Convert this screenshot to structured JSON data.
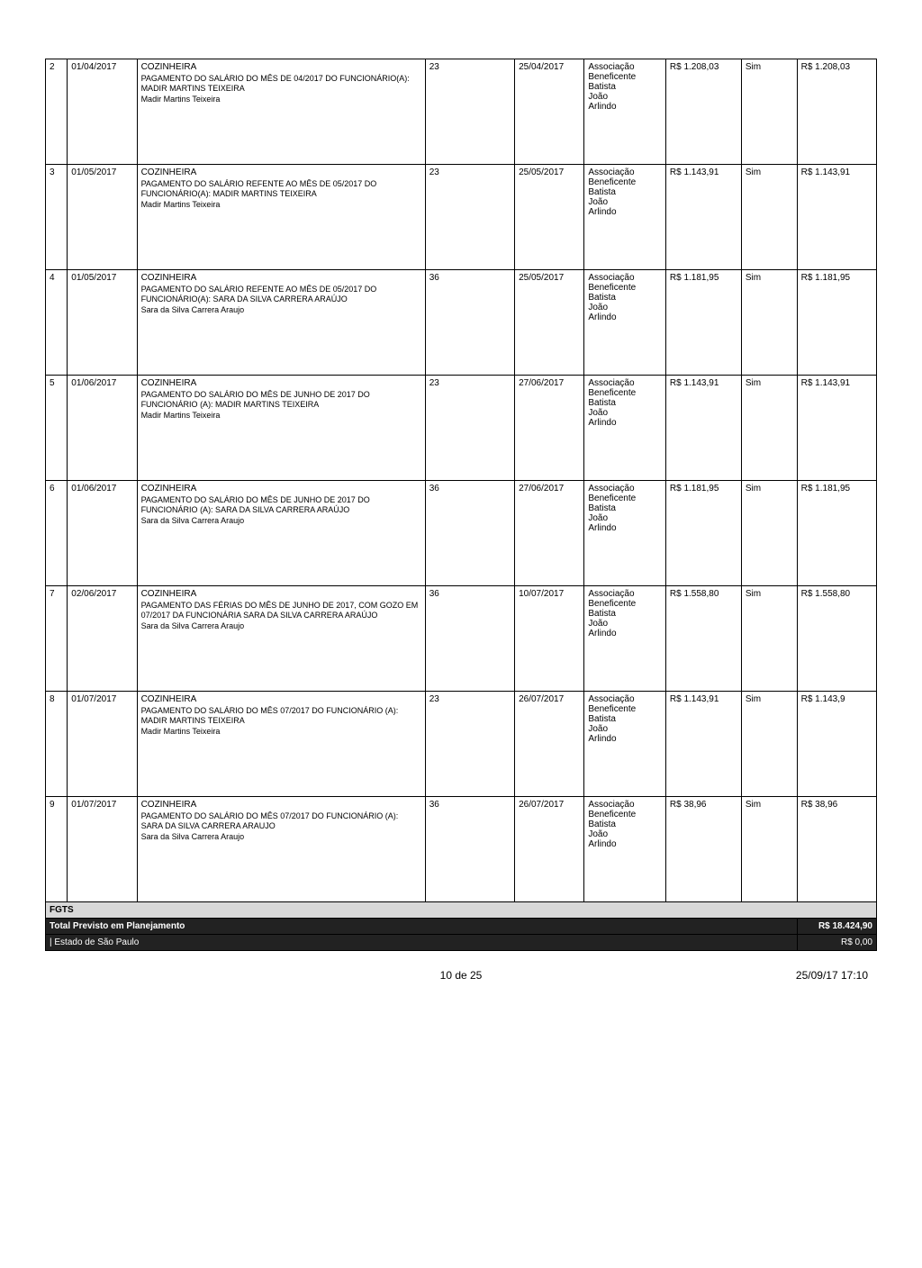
{
  "rows": [
    {
      "num": "2",
      "date": "01/04/2017",
      "title": "COZINHEIRA",
      "body": "PAGAMENTO DO SALÁRIO DO MÊS DE 04/2017 DO FUNCIONÁRIO(A): MADIR MARTINS TEIXEIRA\nMadir Martins Teixeira",
      "n2": "23",
      "date2": "25/04/2017",
      "assoc": "Associação Beneficente Batista João Arlindo",
      "val": "R$ 1.208,03",
      "sim": "Sim",
      "val2": "R$ 1.208,03"
    },
    {
      "num": "3",
      "date": "01/05/2017",
      "title": "COZINHEIRA",
      "body": "PAGAMENTO DO SALÁRIO REFENTE AO MÊS DE 05/2017 DO FUNCIONÁRIO(A): MADIR MARTINS TEIXEIRA\nMadir Martins Teixeira",
      "n2": "23",
      "date2": "25/05/2017",
      "assoc": "Associação Beneficente Batista João Arlindo",
      "val": "R$ 1.143,91",
      "sim": "Sim",
      "val2": "R$ 1.143,91"
    },
    {
      "num": "4",
      "date": "01/05/2017",
      "title": "COZINHEIRA",
      "body": "PAGAMENTO DO SALÁRIO REFENTE AO MÊS DE 05/2017 DO FUNCIONÁRIO(A): SARA DA SILVA CARRERA ARAÚJO\nSara da Silva Carrera Araujo",
      "n2": "36",
      "date2": "25/05/2017",
      "assoc": "Associação Beneficente Batista João Arlindo",
      "val": "R$ 1.181,95",
      "sim": "Sim",
      "val2": "R$ 1.181,95"
    },
    {
      "num": "5",
      "date": "01/06/2017",
      "title": "COZINHEIRA",
      "body": "PAGAMENTO DO SALÁRIO DO MÊS DE JUNHO DE 2017 DO FUNCIONÁRIO (A): MADIR MARTINS TEIXEIRA\nMadir Martins Teixeira",
      "n2": "23",
      "date2": "27/06/2017",
      "assoc": "Associação Beneficente Batista João Arlindo",
      "val": "R$ 1.143,91",
      "sim": "Sim",
      "val2": "R$ 1.143,91"
    },
    {
      "num": "6",
      "date": "01/06/2017",
      "title": "COZINHEIRA",
      "body": "PAGAMENTO DO SALÁRIO DO MÊS DE JUNHO DE 2017 DO FUNCIONÁRIO (A): SARA DA SILVA CARRERA ARAÚJO\nSara da Silva Carrera Araujo",
      "n2": "36",
      "date2": "27/06/2017",
      "assoc": "Associação Beneficente Batista João Arlindo",
      "val": "R$ 1.181,95",
      "sim": "Sim",
      "val2": "R$ 1.181,95"
    },
    {
      "num": "7",
      "date": "02/06/2017",
      "title": "COZINHEIRA",
      "body": "PAGAMENTO DAS FÉRIAS DO MÊS DE JUNHO DE 2017, COM GOZO EM 07/2017 DA FUNCIONÁRIA SARA DA SILVA CARRERA ARAÚJO\nSara da Silva Carrera Araujo",
      "n2": "36",
      "date2": "10/07/2017",
      "assoc": "Associação Beneficente Batista João Arlindo",
      "val": "R$ 1.558,80",
      "sim": "Sim",
      "val2": "R$ 1.558,80"
    },
    {
      "num": "8",
      "date": "01/07/2017",
      "title": "COZINHEIRA",
      "body": "PAGAMENTO DO SALÁRIO DO MÊS 07/2017 DO FUNCIONÁRIO (A): MADIR MARTINS TEIXEIRA\nMadir Martins Teixeira",
      "n2": "23",
      "date2": "26/07/2017",
      "assoc": "Associação Beneficente Batista João Arlindo",
      "val": "R$ 1.143,91",
      "sim": "Sim",
      "val2": "R$ 1.143,9"
    },
    {
      "num": "9",
      "date": "01/07/2017",
      "title": "COZINHEIRA",
      "body": "PAGAMENTO DO SALÁRIO DO MÊS 07/2017 DO FUNCIONÁRIO (A): SARA DA SILVA CARRERA ARAUJO\nSara da Silva Carrera Araujo",
      "n2": "36",
      "date2": "26/07/2017",
      "assoc": "Associação Beneficente Batista João Arlindo",
      "val": "R$ 38,96",
      "sim": "Sim",
      "val2": "R$ 38,96"
    }
  ],
  "fgts_label": "FGTS",
  "total_label": "Total Previsto em Planejamento",
  "total_value": "R$ 18.424,90",
  "sp_label": "| Estado de São Paulo",
  "sp_value": "R$ 0,00",
  "footer_center": "10 de 25",
  "footer_right": "25/09/17 17:10"
}
